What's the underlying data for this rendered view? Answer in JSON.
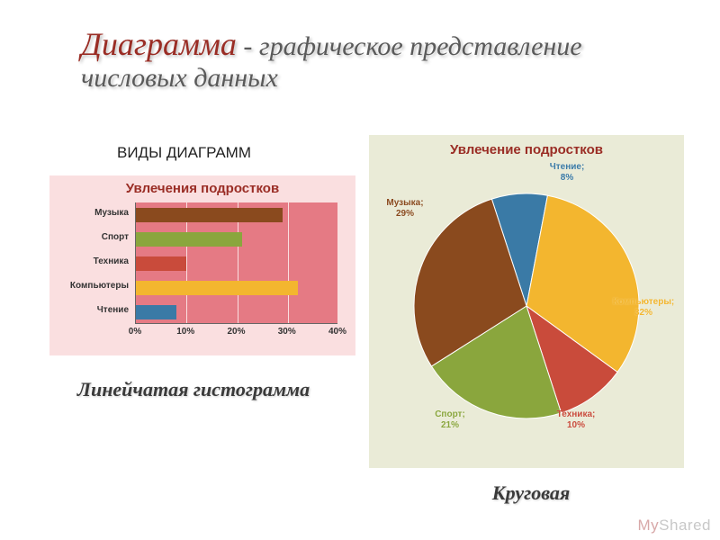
{
  "title": {
    "main": "Диаграмма",
    "rest": " - графическое представление числовых данных",
    "main_color": "#9a2d25",
    "rest_color": "#5a5a5a",
    "main_fontsize": 36,
    "rest_fontsize": 30
  },
  "subtitle": "ВИДЫ ДИАГРАММ",
  "bar_chart": {
    "type": "bar-horizontal",
    "title": "Увлечения подростков",
    "title_color": "#9a2d25",
    "title_fontsize": 15,
    "background_color": "#fadfe0",
    "plot_bg_color": "#e57a84",
    "grid_color": "#fadfe0",
    "categories": [
      "Музыка",
      "Спорт",
      "Техника",
      "Компьютеры",
      "Чтение"
    ],
    "values": [
      29,
      21,
      10,
      32,
      8
    ],
    "bar_colors": [
      "#8a4a1e",
      "#8aa63d",
      "#c94b3b",
      "#f3b62f",
      "#3a7aa6"
    ],
    "xlim": [
      0,
      40
    ],
    "xtick_step": 10,
    "xtick_labels": [
      "0%",
      "10%",
      "20%",
      "30%",
      "40%"
    ],
    "label_fontsize": 10,
    "caption": "Линейчатая гистограмма"
  },
  "pie_chart": {
    "type": "pie",
    "title": "Увлечение подростков",
    "title_color": "#9a2d25",
    "title_fontsize": 15,
    "background_color": "#eaebd7",
    "slices": [
      {
        "label": "Чтение; 8%",
        "value": 8,
        "color": "#3a7aa6"
      },
      {
        "label": "Компьютеры; 32%",
        "value": 32,
        "color": "#f3b62f"
      },
      {
        "label": "Техника; 10%",
        "value": 10,
        "color": "#c94b3b"
      },
      {
        "label": "Спорт; 21%",
        "value": 21,
        "color": "#8aa63d"
      },
      {
        "label": "Музыка; 29%",
        "value": 29,
        "color": "#8a4a1e"
      }
    ],
    "start_angle_deg": -108,
    "radius": 125,
    "label_fontsize": 10,
    "caption": "Круговая"
  },
  "watermark": {
    "part1": "My",
    "part2": "Shared"
  }
}
